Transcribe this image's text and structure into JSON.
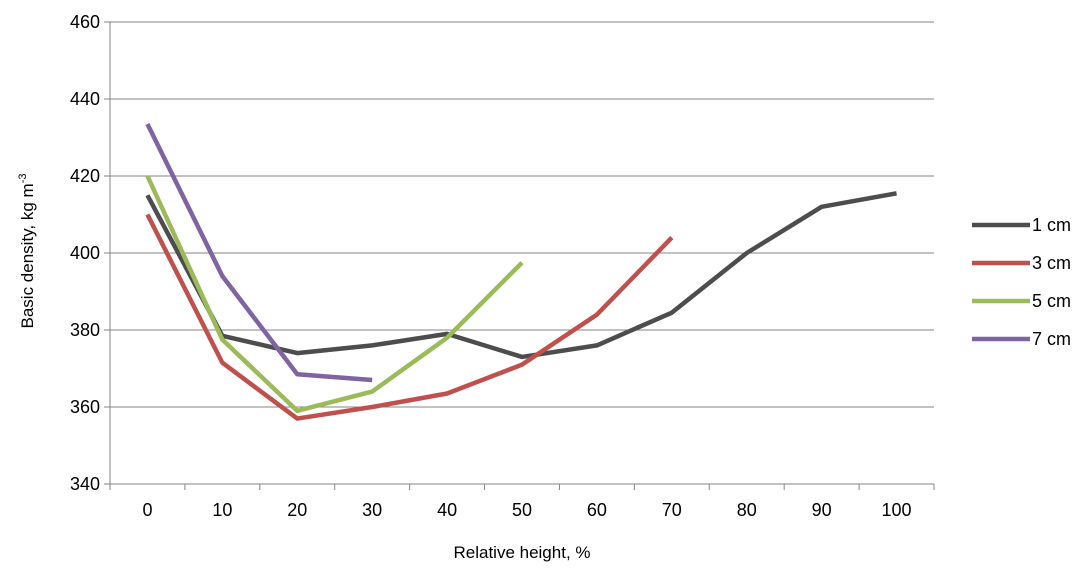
{
  "chart_data": {
    "type": "line",
    "title": "",
    "xlabel": "Relative height, %",
    "ylabel": {
      "text": "Basic density, kg m",
      "superscript": "-3"
    },
    "categories": [
      "0",
      "10",
      "20",
      "30",
      "40",
      "50",
      "60",
      "70",
      "80",
      "90",
      "100"
    ],
    "ylim": [
      340,
      460
    ],
    "yticks": [
      "340",
      "360",
      "380",
      "400",
      "420",
      "440",
      "460"
    ],
    "grid": true,
    "legend_position": "right",
    "series": [
      {
        "name": "1 cm",
        "color": "#4d4d4d",
        "values": [
          415,
          378.5,
          374,
          376,
          379,
          373,
          376,
          384.5,
          400,
          412,
          415.5
        ]
      },
      {
        "name": "3 cm",
        "color": "#c0504d",
        "values": [
          410,
          371.5,
          357,
          360,
          363.5,
          371,
          384,
          404,
          null,
          null,
          null
        ]
      },
      {
        "name": "5 cm",
        "color": "#9bbb59",
        "values": [
          420,
          377.5,
          359,
          364,
          378,
          397.5,
          null,
          null,
          null,
          null,
          null
        ]
      },
      {
        "name": "7 cm",
        "color": "#8064a2",
        "values": [
          433.5,
          394,
          368.5,
          367,
          null,
          null,
          null,
          null,
          null,
          null,
          null
        ]
      }
    ]
  }
}
